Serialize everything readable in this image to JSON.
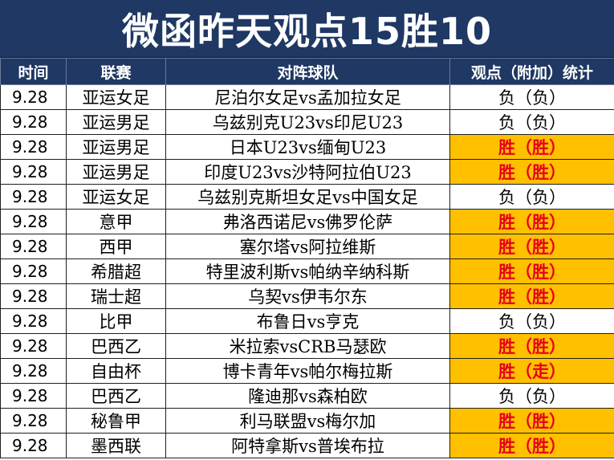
{
  "title": "微函昨天观点15胜10",
  "headers": {
    "time": "时间",
    "league": "联赛",
    "match": "对阵球队",
    "result": "观点（附加）统计"
  },
  "highlight_color": "#ffc000",
  "win_text_color": "#e8001c",
  "rows": [
    {
      "time": "9.28",
      "league": "亚运女足",
      "match": "尼泊尔女足vs孟加拉女足",
      "result": "负（负）",
      "win": false
    },
    {
      "time": "9.28",
      "league": "亚运男足",
      "match": "乌兹别克U23vs印尼U23",
      "result": "负（负）",
      "win": false
    },
    {
      "time": "9.28",
      "league": "亚运男足",
      "match": "日本U23vs缅甸U23",
      "result": "胜（胜）",
      "win": true
    },
    {
      "time": "9.28",
      "league": "亚运男足",
      "match": "印度U23vs沙特阿拉伯U23",
      "result": "胜（胜）",
      "win": true
    },
    {
      "time": "9.28",
      "league": "亚运女足",
      "match": "乌兹别克斯坦女足vs中国女足",
      "result": "负（负）",
      "win": false
    },
    {
      "time": "9.28",
      "league": "意甲",
      "match": "弗洛西诺尼vs佛罗伦萨",
      "result": "胜（胜）",
      "win": true
    },
    {
      "time": "9.28",
      "league": "西甲",
      "match": "塞尔塔vs阿拉维斯",
      "result": "胜（胜）",
      "win": true
    },
    {
      "time": "9.28",
      "league": "希腊超",
      "match": "特里波利斯vs帕纳辛纳科斯",
      "result": "胜（胜）",
      "win": true
    },
    {
      "time": "9.28",
      "league": "瑞士超",
      "match": "乌契vs伊韦尔东",
      "result": "胜（胜）",
      "win": true
    },
    {
      "time": "9.28",
      "league": "比甲",
      "match": "布鲁日vs亨克",
      "result": "负（负）",
      "win": false
    },
    {
      "time": "9.28",
      "league": "巴西乙",
      "match": "米拉索vsCRB马瑟欧",
      "result": "胜（胜）",
      "win": true
    },
    {
      "time": "9.28",
      "league": "自由杯",
      "match": "博卡青年vs帕尔梅拉斯",
      "result": "胜（走）",
      "win": true
    },
    {
      "time": "9.28",
      "league": "巴西乙",
      "match": "隆迪那vs森柏欧",
      "result": "负（负）",
      "win": false
    },
    {
      "time": "9.28",
      "league": "秘鲁甲",
      "match": "利马联盟vs梅尔加",
      "result": "胜（胜）",
      "win": true
    },
    {
      "time": "9.28",
      "league": "墨西联",
      "match": "阿特拿斯vs普埃布拉",
      "result": "胜（胜）",
      "win": true
    }
  ]
}
